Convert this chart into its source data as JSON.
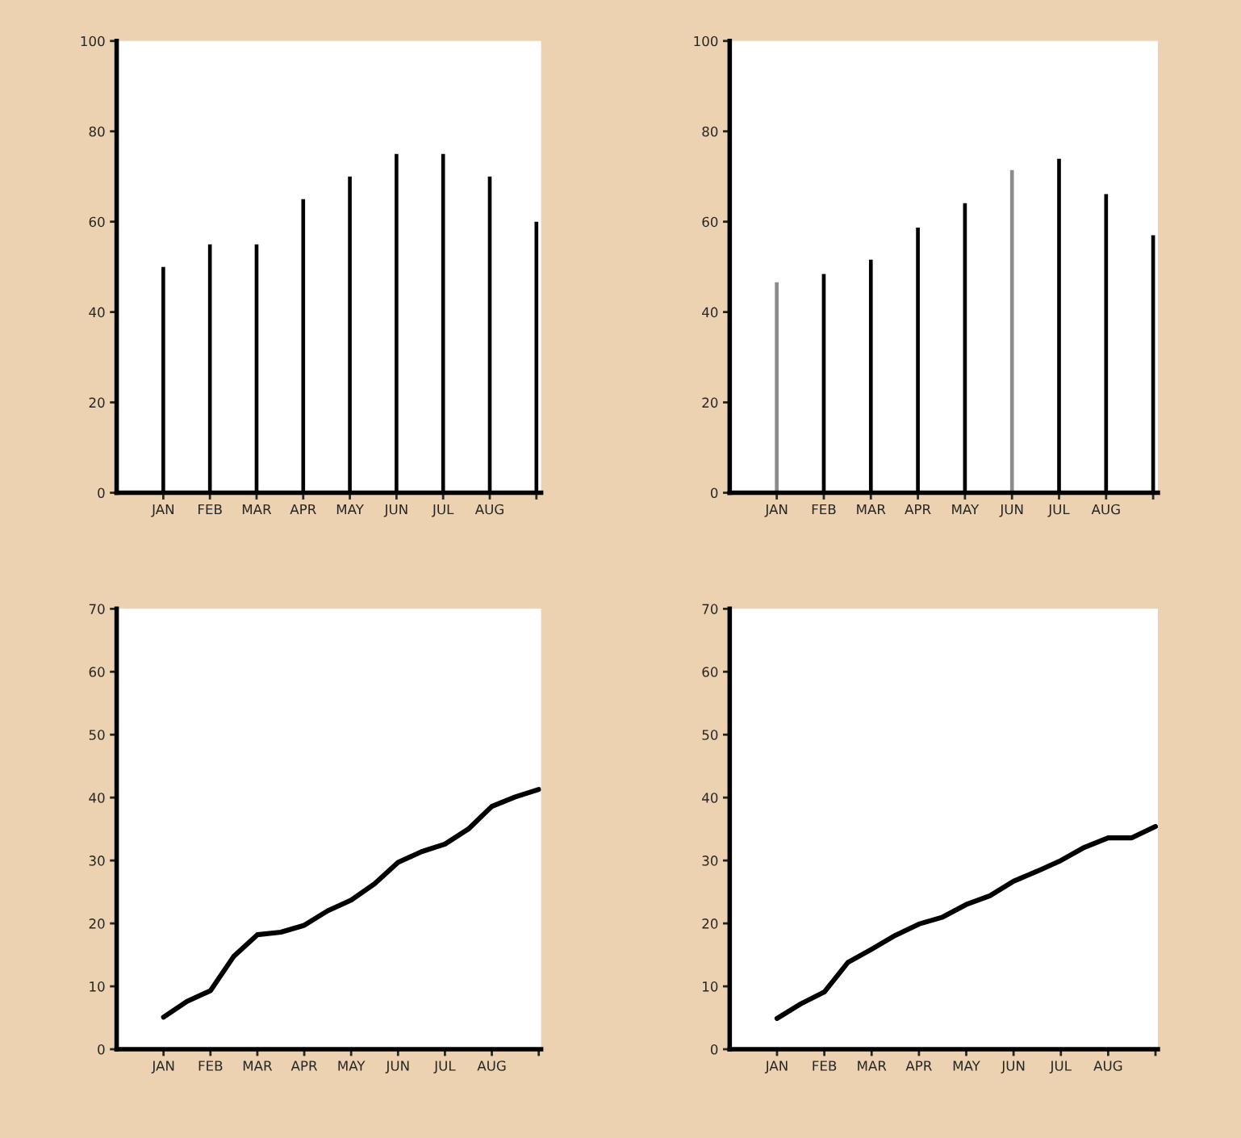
{
  "chart_data": [
    {
      "type": "bar",
      "categories": [
        "JAN",
        "FEB",
        "MAR",
        "APR",
        "MAY",
        "JUN",
        "JUL",
        "AUG",
        null
      ],
      "values": [
        50,
        55,
        55,
        65,
        70,
        75,
        75,
        70,
        60
      ],
      "color": "#000000",
      "ylim": [
        0,
        100
      ],
      "yticks": [
        0,
        20,
        40,
        60,
        80,
        100
      ]
    },
    {
      "type": "bar",
      "categories": [
        "JAN",
        "FEB",
        "MAR",
        "APR",
        "MAY",
        "JUN",
        "JUL",
        "AUG",
        null
      ],
      "values": [
        46.6,
        48.4,
        51.6,
        58.7,
        64.1,
        71.4,
        73.9,
        66.1,
        57.0
      ],
      "colors": [
        "#8c8c8c",
        "#000000",
        "#000000",
        "#000000",
        "#000000",
        "#8c8c8c",
        "#000000",
        "#000000",
        "#000000"
      ],
      "ylim": [
        0,
        100
      ],
      "yticks": [
        0,
        20,
        40,
        60,
        80,
        100
      ]
    },
    {
      "type": "line",
      "categories": [
        "JAN",
        null,
        "FEB",
        null,
        "MAR",
        null,
        "APR",
        null,
        "MAY",
        null,
        "JUN",
        null,
        "JUL",
        null,
        "AUG",
        null,
        null
      ],
      "series": [
        {
          "color": "#000000",
          "values": [
            5.1,
            7.6,
            9.3,
            14.8,
            18.2,
            18.6,
            19.7,
            22.0,
            23.7,
            26.3,
            29.7,
            31.4,
            32.6,
            35.0,
            38.6,
            40.1,
            41.3
          ]
        }
      ],
      "ylim": [
        0,
        70
      ],
      "yticks": [
        0,
        10,
        20,
        30,
        40,
        50,
        60,
        70
      ]
    },
    {
      "type": "line",
      "categories": [
        "JAN",
        null,
        "FEB",
        null,
        "MAR",
        null,
        "APR",
        null,
        "MAY",
        null,
        "JUN",
        null,
        "JUL",
        null,
        "AUG",
        null,
        null
      ],
      "series": [
        {
          "color": "#000000",
          "values": [
            4.9,
            7.2,
            9.1,
            13.8,
            15.9,
            18.1,
            19.9,
            21.0,
            23.0,
            24.4,
            26.7,
            28.3,
            30.0,
            32.1,
            33.6,
            33.6,
            35.4
          ]
        }
      ],
      "ylim": [
        0,
        70
      ],
      "yticks": [
        0,
        10,
        20,
        30,
        40,
        50,
        60,
        70
      ]
    }
  ]
}
